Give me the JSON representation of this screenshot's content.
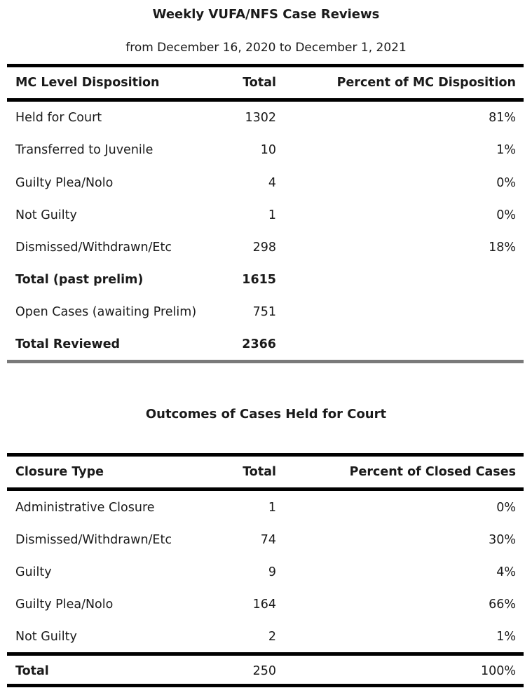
{
  "report": {
    "title": "Weekly VUFA/NFS Case Reviews",
    "subtitle": "from December 16, 2020 to December 1, 2021"
  },
  "table1": {
    "headers": [
      "MC Level Disposition",
      "Total",
      "Percent of MC Disposition"
    ],
    "rows": [
      {
        "label": "Held for Court",
        "total": "1302",
        "percent": "81%"
      },
      {
        "label": "Transferred to Juvenile",
        "total": "10",
        "percent": "1%"
      },
      {
        "label": "Guilty Plea/Nolo",
        "total": "4",
        "percent": "0%"
      },
      {
        "label": "Not Guilty",
        "total": "1",
        "percent": "0%"
      },
      {
        "label": "Dismissed/Withdrawn/Etc",
        "total": "298",
        "percent": "18%"
      },
      {
        "label": "Total (past prelim)",
        "total": "1615",
        "percent": ""
      },
      {
        "label": "Open Cases (awaiting Prelim)",
        "total": "751",
        "percent": ""
      },
      {
        "label": "Total Reviewed",
        "total": "2366",
        "percent": ""
      }
    ]
  },
  "table2": {
    "title": "Outcomes of Cases Held for Court",
    "headers": [
      "Closure Type",
      "Total",
      "Percent of Closed Cases"
    ],
    "rows": [
      {
        "label": "Administrative Closure",
        "total": "1",
        "percent": "0%"
      },
      {
        "label": "Dismissed/Withdrawn/Etc",
        "total": "74",
        "percent": "30%"
      },
      {
        "label": "Guilty",
        "total": "9",
        "percent": "4%"
      },
      {
        "label": "Guilty Plea/Nolo",
        "total": "164",
        "percent": "66%"
      },
      {
        "label": "Not Guilty",
        "total": "2",
        "percent": "1%"
      }
    ],
    "total_row": {
      "label": "Total",
      "total": "250",
      "percent": "100%"
    }
  }
}
